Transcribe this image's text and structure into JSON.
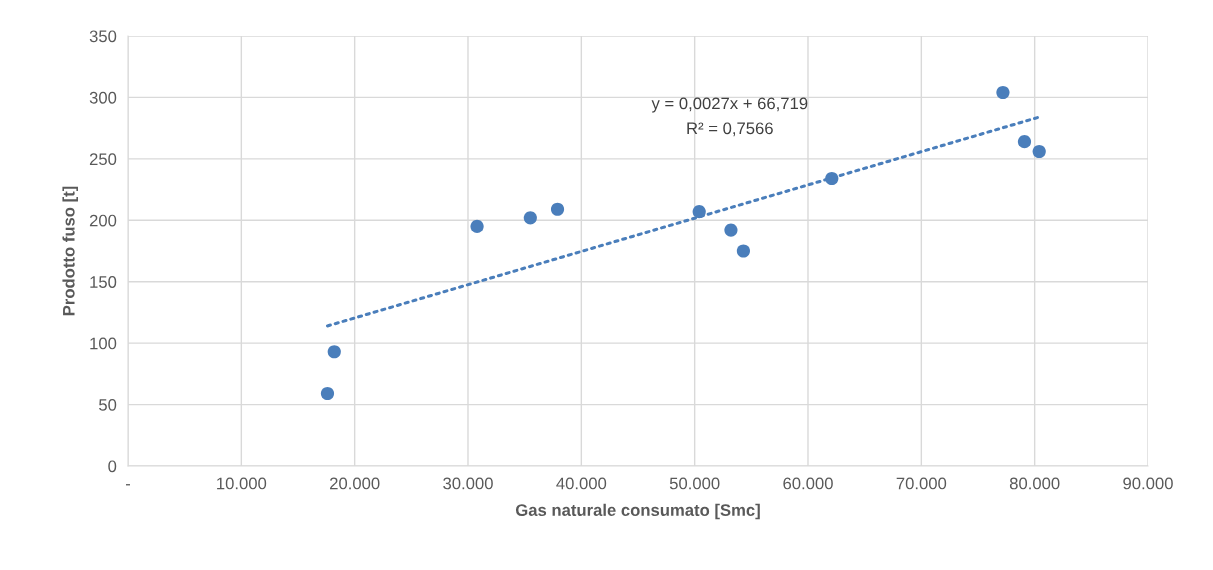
{
  "chart_data": {
    "type": "scatter",
    "xlabel": "Gas naturale consumato [Smc]",
    "ylabel": "Prodotto fuso [t]",
    "series": [
      {
        "color": "#4a7ebb",
        "marker": "circle",
        "x": [
          17600,
          18200,
          30800,
          35500,
          37900,
          50400,
          53200,
          54300,
          62100,
          77200,
          79100,
          80400
        ],
        "values": [
          59,
          93,
          195,
          202,
          209,
          207,
          192,
          175,
          234,
          304,
          264,
          256
        ]
      },
      {
        "type": "line",
        "color": "#4a7ebb",
        "line_style": "dotted",
        "marker": "none",
        "x": [
          17600,
          80400
        ],
        "values": [
          114,
          284
        ]
      }
    ],
    "annotations": [
      "y = 0,0027x + 66,719",
      "R² = 0,7566"
    ],
    "xlim": [
      0,
      90000
    ],
    "xticks": [
      {
        "value": 0,
        "label": "-"
      },
      {
        "value": 10000,
        "label": "10.000"
      },
      {
        "value": 20000,
        "label": "20.000"
      },
      {
        "value": 30000,
        "label": "30.000"
      },
      {
        "value": 40000,
        "label": "40.000"
      },
      {
        "value": 50000,
        "label": "50.000"
      },
      {
        "value": 60000,
        "label": "60.000"
      },
      {
        "value": 70000,
        "label": "70.000"
      },
      {
        "value": 80000,
        "label": "80.000"
      },
      {
        "value": 90000,
        "label": "90.000"
      }
    ],
    "ylim": [
      0,
      350
    ],
    "yticks": [
      0,
      50,
      100,
      150,
      200,
      250,
      300,
      350
    ],
    "grid": true,
    "legend": false
  }
}
